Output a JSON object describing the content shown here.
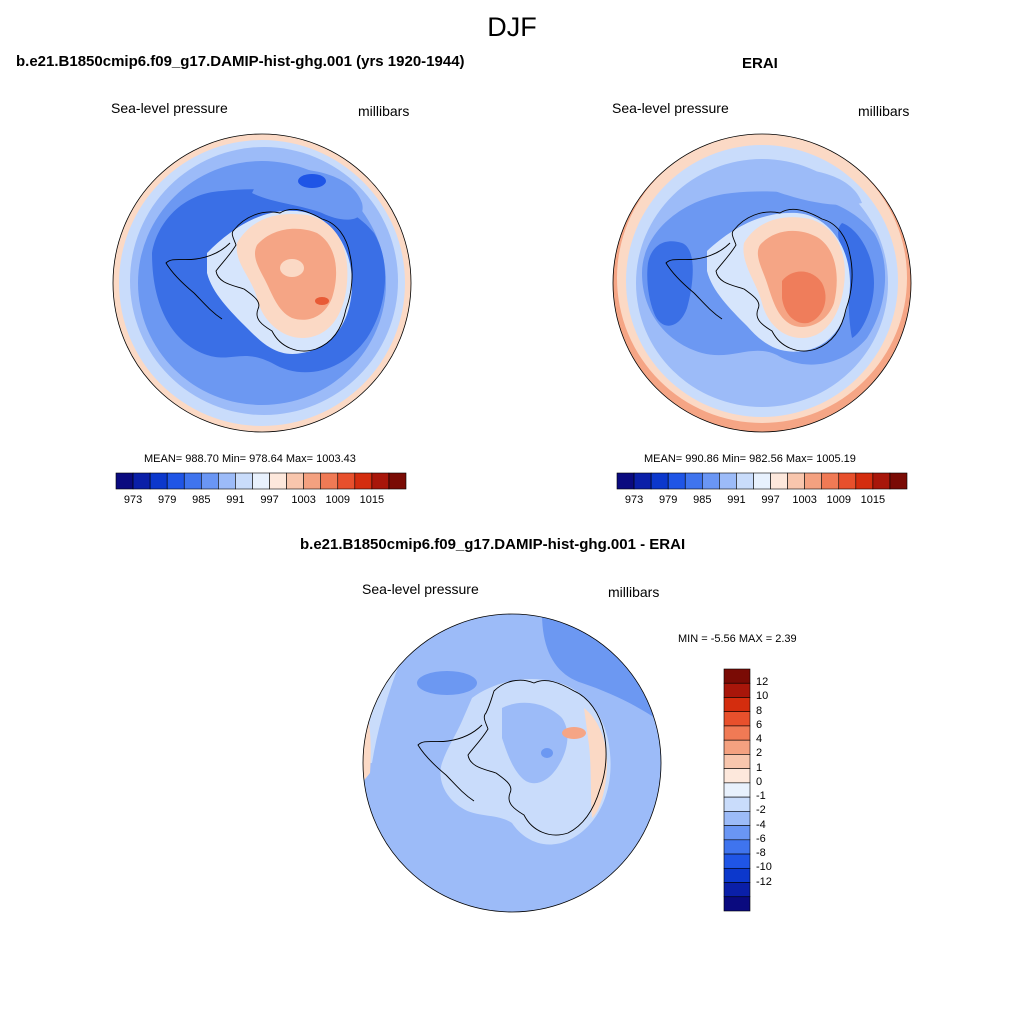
{
  "figure": {
    "title": "DJF"
  },
  "panels": [
    {
      "title": "b.e21.B1850cmip6.f09_g17.DAMIP-hist-ghg.001 (yrs 1920-1944)",
      "left_label": "Sea-level pressure",
      "right_label": "millibars",
      "stats": "MEAN= 988.70  Min= 978.64  Max= 1003.43"
    },
    {
      "title": "ERAI",
      "left_label": "Sea-level pressure",
      "right_label": "millibars",
      "stats": "MEAN= 990.86  Min= 982.56  Max= 1005.19"
    },
    {
      "title": "b.e21.B1850cmip6.f09_g17.DAMIP-hist-ghg.001 - ERAI",
      "left_label": "Sea-level pressure",
      "right_label": "millibars",
      "stats": "MIN =  -5.56 MAX =   2.39"
    }
  ],
  "colorbars": {
    "slp": {
      "colors": [
        "#0a0a7f",
        "#0a1fa8",
        "#0c38cc",
        "#1f55e6",
        "#3f74ee",
        "#6a96f4",
        "#9cbbf8",
        "#c9dcfb",
        "#e8f1fd",
        "#fde8dc",
        "#f8c6ad",
        "#f4a180",
        "#f07a55",
        "#e8502c",
        "#d42d0e",
        "#a8160a",
        "#7a0b05"
      ],
      "ticks": [
        "973",
        "979",
        "985",
        "991",
        "997",
        "1003",
        "1009",
        "1015"
      ]
    },
    "diff": {
      "colors": [
        "#7a0b05",
        "#a8160a",
        "#d42d0e",
        "#e8502c",
        "#f07a55",
        "#f4a180",
        "#f8c6ad",
        "#fde8dc",
        "#e8f1fd",
        "#c9dcfb",
        "#9cbbf8",
        "#6a96f4",
        "#3f74ee",
        "#1f55e6",
        "#0c38cc",
        "#0a1fa8",
        "#0a0a7f"
      ],
      "ticks": [
        "12",
        "10",
        "8",
        "6",
        "4",
        "2",
        "1",
        "0",
        "-1",
        "-2",
        "-4",
        "-6",
        "-8",
        "-10",
        "-12"
      ]
    }
  },
  "colors": {
    "deep_blue": "#3a6fe6",
    "mid_blue": "#6c98f2",
    "light_blue": "#a7c4f8",
    "pale_blue": "#d6e5fc",
    "peach": "#fbd9c5",
    "light_red": "#f5a585",
    "mid_red": "#ef7d5b",
    "red": "#e85a36",
    "coast": "#000000"
  },
  "map_layers": {
    "left": "sea-level-pressure-model",
    "right": "sea-level-pressure-erai",
    "bottom": "sea-level-pressure-difference"
  }
}
